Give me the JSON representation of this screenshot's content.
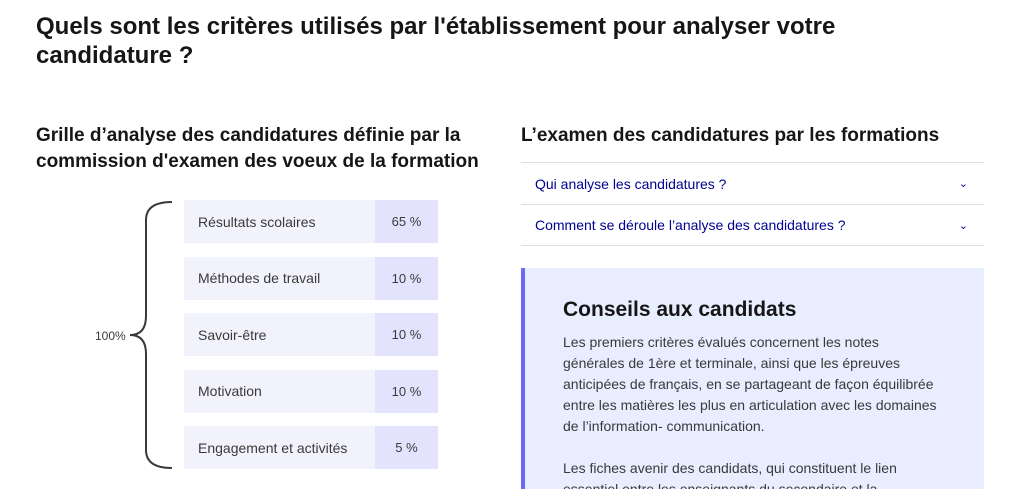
{
  "page": {
    "title": "Quels sont les critères utilisés par l'établissement pour analyser votre candidature ?"
  },
  "grid": {
    "title": "Grille d’analyse des candidatures définie par la commission d'examen des voeux de la formation",
    "total_label": "100%",
    "criteria": [
      {
        "name": "Résultats scolaires",
        "pct": "65 %"
      },
      {
        "name": "Méthodes de travail",
        "pct": "10 %"
      },
      {
        "name": "Savoir-être",
        "pct": "10 %"
      },
      {
        "name": "Motivation",
        "pct": "10 %"
      },
      {
        "name": "Engagement et activités",
        "pct": "5 %"
      }
    ]
  },
  "exam": {
    "title": "L’examen des candidatures par les formations",
    "accordion": [
      {
        "label": "Qui analyse les candidatures ?",
        "icon": "chevron-down-icon"
      },
      {
        "label": "Comment se déroule l’analyse des candidatures ?",
        "icon": "chevron-down-icon"
      }
    ]
  },
  "advice": {
    "title": "Conseils aux candidats",
    "paragraphs": [
      "Les premiers critères évalués concernent les notes générales de 1ère et terminale, ainsi que les épreuves anticipées de français, en se partageant de façon équilibrée entre les matières les plus en articulation avec les domaines de l’information- communication.",
      "Les fiches avenir des candidats, qui constituent le lien essentiel entre les enseignants du secondaire et la"
    ]
  },
  "colors": {
    "accent": "#000091",
    "criteria_bg": "#f2f2fd",
    "pct_bg": "#e3e3fd",
    "advice_bg": "#e8edff",
    "advice_border": "#6a6af4"
  }
}
